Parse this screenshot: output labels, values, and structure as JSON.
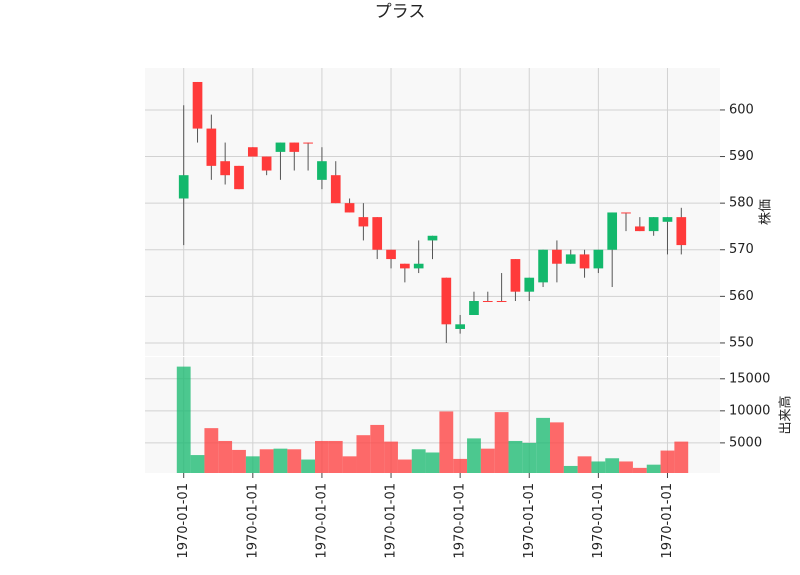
{
  "chart_data": {
    "type": "candlestick",
    "title": "プラス",
    "ylabel": "株価",
    "y2label": "出来高",
    "xlim": [
      -2.8,
      38.8
    ],
    "xticks": [
      {
        "value": 0,
        "label": "1970-01-01"
      },
      {
        "value": 5,
        "label": "1970-01-01"
      },
      {
        "value": 10,
        "label": "1970-01-01"
      },
      {
        "value": 15,
        "label": "1970-01-01"
      },
      {
        "value": 20,
        "label": "1970-01-01"
      },
      {
        "value": 25,
        "label": "1970-01-01"
      },
      {
        "value": 30,
        "label": "1970-01-01"
      },
      {
        "value": 35,
        "label": "1970-01-01"
      }
    ],
    "ylim": [
      547.2,
      609
    ],
    "yticks": [
      550,
      560,
      570,
      580,
      590,
      600
    ],
    "y2lim": [
      300,
      18400
    ],
    "y2ticks": [
      5000,
      10000,
      15000
    ],
    "grid": true,
    "up_color": "#13b86c",
    "down_color": "#ff3a3a",
    "open": [
      581,
      606,
      596,
      589,
      588,
      592,
      590,
      591,
      593,
      593,
      585,
      586,
      580,
      577,
      577,
      570,
      567,
      566,
      572,
      564,
      553,
      556,
      559,
      559,
      568,
      561,
      563,
      570,
      567,
      569,
      566,
      570,
      578,
      575,
      574,
      576,
      577
    ],
    "high": [
      601,
      606,
      599,
      593,
      588,
      592,
      590,
      593,
      593,
      593,
      592,
      589,
      581,
      580,
      577,
      570,
      567,
      572,
      573,
      564,
      556,
      561,
      561,
      565,
      568,
      564,
      570,
      572,
      570,
      570,
      570,
      578,
      578,
      577,
      577,
      577,
      579
    ],
    "low": [
      571,
      593,
      585,
      584,
      583,
      590,
      586,
      585,
      587,
      587,
      583,
      580,
      578,
      572,
      568,
      566,
      563,
      565,
      568,
      550,
      552,
      556,
      559,
      559,
      559,
      559,
      562,
      563,
      567,
      564,
      565,
      562,
      574,
      574,
      573,
      569,
      569
    ],
    "close": [
      586,
      596,
      588,
      586,
      583,
      590,
      587,
      593,
      591,
      593,
      589,
      580,
      578,
      575,
      570,
      568,
      566,
      567,
      573,
      554,
      554,
      559,
      559,
      559,
      561,
      564,
      570,
      567,
      569,
      566,
      570,
      578,
      578,
      574,
      577,
      577,
      571
    ],
    "volume": [
      16900,
      3100,
      7300,
      5300,
      3900,
      2900,
      4000,
      4100,
      4000,
      2400,
      5300,
      5300,
      2900,
      6200,
      7800,
      5200,
      2400,
      4000,
      3500,
      9900,
      2500,
      5700,
      4100,
      9800,
      5300,
      5000,
      8900,
      8200,
      1400,
      2900,
      2100,
      2600,
      2100,
      1100,
      1600,
      3800,
      5200
    ]
  }
}
